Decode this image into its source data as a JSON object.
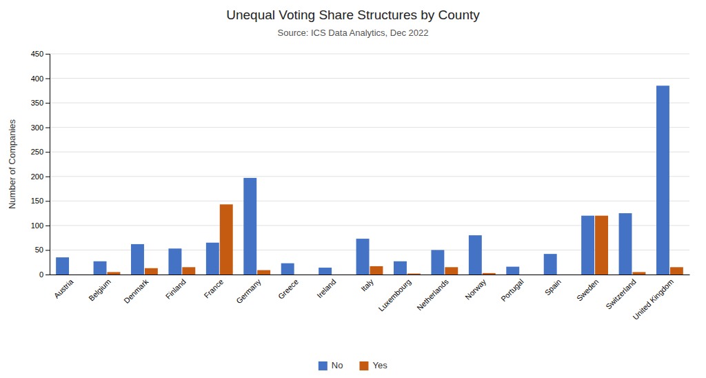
{
  "chart_data": {
    "type": "bar",
    "title": "Unequal Voting Share Structures by County",
    "subtitle": "Source: ICS Data Analytics, Dec 2022",
    "ylabel": "Number of Companies",
    "categories": [
      "Austria",
      "Belgium",
      "Denmark",
      "Finland",
      "France",
      "Germany",
      "Greece",
      "Ireland",
      "Italy",
      "Luxembourg",
      "Netherlands",
      "Norway",
      "Portugal",
      "Spain",
      "Sweden",
      "Switzerland",
      "United Kingdom"
    ],
    "series": [
      {
        "name": "No",
        "color": "#4472C4",
        "values": [
          35,
          27,
          62,
          53,
          65,
          197,
          23,
          14,
          73,
          27,
          50,
          80,
          16,
          42,
          120,
          125,
          385
        ]
      },
      {
        "name": "Yes",
        "color": "#C55A11",
        "values": [
          0,
          5,
          13,
          15,
          143,
          9,
          0,
          0,
          17,
          2,
          15,
          3,
          0,
          0,
          120,
          5,
          15
        ]
      }
    ],
    "ylim": [
      0,
      450
    ],
    "yticks": [
      0,
      50,
      100,
      150,
      200,
      250,
      300,
      350,
      400,
      450
    ],
    "grid": true,
    "legend": "bottom"
  }
}
